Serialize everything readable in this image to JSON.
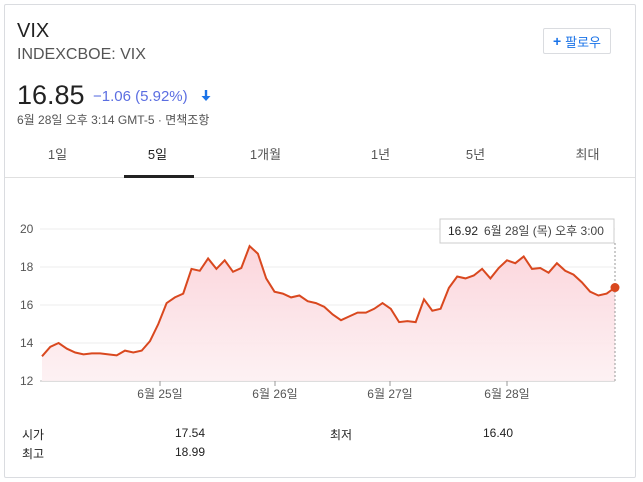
{
  "header": {
    "title": "VIX",
    "subtitle": "INDEXCBOE: VIX",
    "follow_label": "팔로우",
    "price": "16.85",
    "change": "−1.06 (5.92%)",
    "meta": "6월 28일 오후 3:14 GMT-5 · 면책조항",
    "accent": "#1a73e8",
    "down_color": "#5b6ee1"
  },
  "tabs": [
    {
      "label": "1일"
    },
    {
      "label": "5일"
    },
    {
      "label": "1개월"
    },
    {
      "label": "1년"
    },
    {
      "label": "5년"
    },
    {
      "label": "최대"
    }
  ],
  "active_tab": "5일",
  "tooltip": {
    "value": "16.92",
    "label": "6월 28일 (목) 오후 3:00"
  },
  "stats": {
    "open_label": "시가",
    "open_value": "17.54",
    "high_label": "최고",
    "high_value": "18.99",
    "low_label": "최저",
    "low_value": "16.40"
  },
  "chart_data": {
    "type": "area",
    "line_color": "#d9481f",
    "fill_color": "#fbd8dd",
    "ylim": [
      12,
      20
    ],
    "yticks": [
      "20",
      "18",
      "16",
      "14",
      "12"
    ],
    "xticks": [
      "6월 25일",
      "6월 26일",
      "6월 27일",
      "6월 28일"
    ],
    "grid": true,
    "values": [
      13.3,
      13.8,
      14.0,
      13.7,
      13.5,
      13.4,
      13.45,
      13.45,
      13.4,
      13.35,
      13.6,
      13.5,
      13.6,
      14.1,
      15.0,
      16.1,
      16.4,
      16.6,
      17.9,
      17.8,
      18.45,
      17.9,
      18.35,
      17.75,
      17.95,
      19.1,
      18.7,
      17.4,
      16.7,
      16.6,
      16.4,
      16.5,
      16.2,
      16.1,
      15.9,
      15.5,
      15.2,
      15.4,
      15.6,
      15.6,
      15.8,
      16.1,
      15.8,
      15.1,
      15.15,
      15.1,
      16.3,
      15.7,
      15.8,
      16.9,
      17.5,
      17.4,
      17.55,
      17.9,
      17.4,
      17.95,
      18.35,
      18.2,
      18.55,
      17.9,
      17.95,
      17.7,
      18.2,
      17.8,
      17.6,
      17.2,
      16.7,
      16.5,
      16.6,
      16.92
    ]
  }
}
